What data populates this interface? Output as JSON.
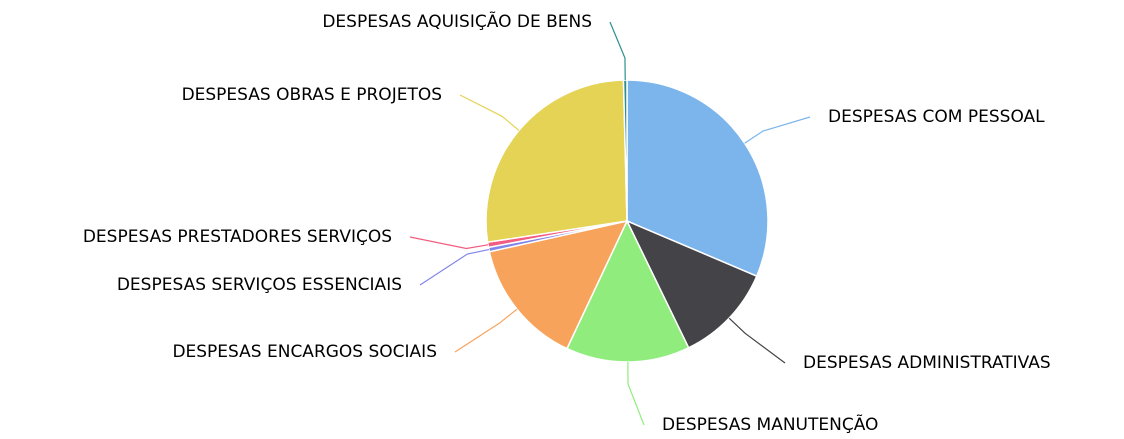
{
  "chart_data": {
    "type": "pie",
    "categories": [
      "DESPESAS COM PESSOAL",
      "DESPESAS ADMINISTRATIVAS",
      "DESPESAS MANUTENÇÃO",
      "DESPESAS ENCARGOS SOCIAIS",
      "DESPESAS SERVIÇOS ESSENCIAIS",
      "DESPESAS PRESTADORES SERVIÇOS",
      "DESPESAS OBRAS E PROJETOS",
      "DESPESAS AQUISIÇÃO DE BENS"
    ],
    "values": [
      31.4,
      11.4,
      14.2,
      14.5,
      0.5,
      0.6,
      27.0,
      0.4
    ],
    "colors": [
      "#7cb5ec",
      "#434348",
      "#90ed7d",
      "#f7a35c",
      "#8085e9",
      "#f15c80",
      "#e4d354",
      "#2b908f"
    ]
  }
}
